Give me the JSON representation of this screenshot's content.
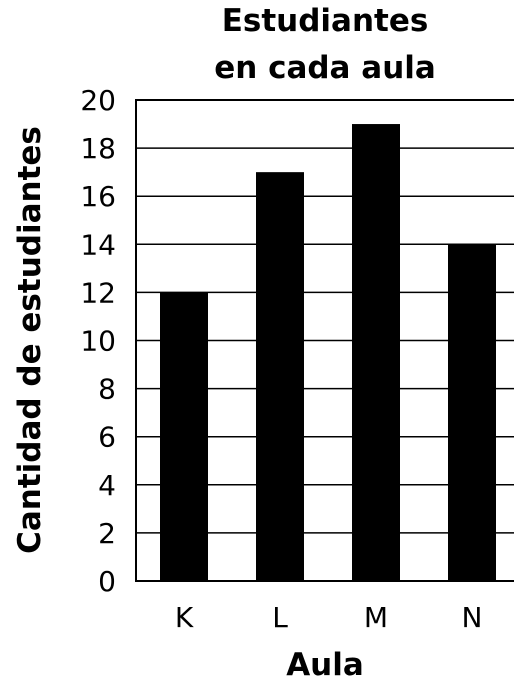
{
  "chart_data": {
    "type": "bar",
    "title": [
      "Estudiantes",
      "en cada aula"
    ],
    "xlabel": "Aula",
    "ylabel": "Cantidad de estudiantes",
    "categories": [
      "K",
      "L",
      "M",
      "N"
    ],
    "values": [
      12,
      17,
      19,
      14
    ],
    "ylim": [
      0,
      20
    ],
    "yticks": [
      0,
      2,
      4,
      6,
      8,
      10,
      12,
      14,
      16,
      18,
      20
    ],
    "grid": true,
    "bar_color": "#000000",
    "grid_color": "#000000"
  }
}
